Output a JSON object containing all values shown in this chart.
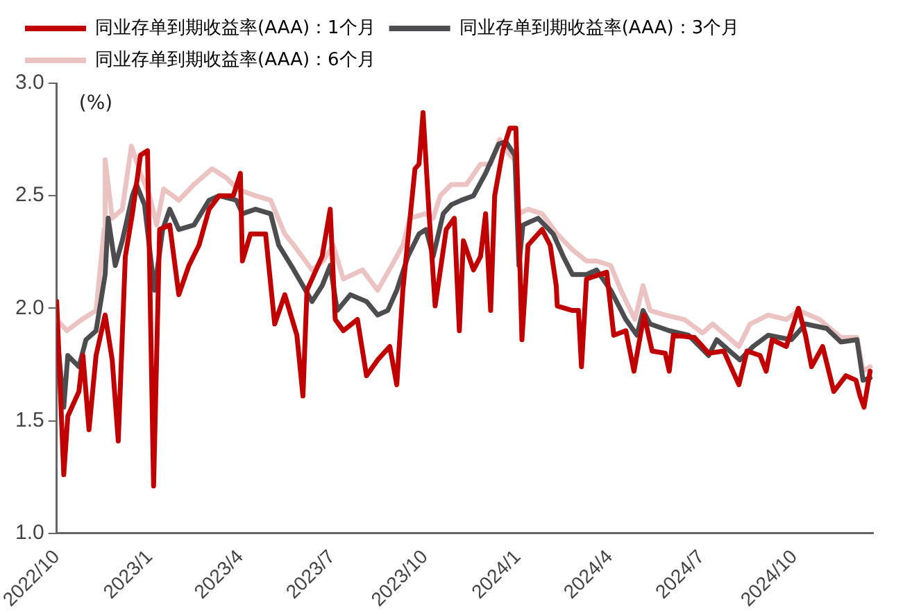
{
  "chart_data": {
    "type": "line",
    "ylabel": "(%)",
    "legend": "top",
    "marker": "none",
    "line_style": "solid",
    "grid": false,
    "xlim": [
      "2022-10-01",
      "2024-12-18"
    ],
    "xticks": [
      {
        "value": "2022-10-01",
        "label": "2022/10"
      },
      {
        "value": "2023-01-01",
        "label": "2023/1"
      },
      {
        "value": "2023-04-01",
        "label": "2023/4"
      },
      {
        "value": "2023-07-01",
        "label": "2023/7"
      },
      {
        "value": "2023-10-01",
        "label": "2023/10"
      },
      {
        "value": "2024-01-01",
        "label": "2024/1"
      },
      {
        "value": "2024-04-01",
        "label": "2024/4"
      },
      {
        "value": "2024-07-01",
        "label": "2024/7"
      },
      {
        "value": "2024-10-01",
        "label": "2024/10"
      }
    ],
    "ylim": [
      1,
      3
    ],
    "yticks": [
      {
        "value": 1,
        "label": "1.0"
      },
      {
        "value": 1.5,
        "label": "1.5"
      },
      {
        "value": 2,
        "label": "2.0"
      },
      {
        "value": 2.5,
        "label": "2.5"
      },
      {
        "value": 3,
        "label": "3.0"
      }
    ],
    "series": [
      {
        "name": "同业存单到期收益率(AAA)：1个月",
        "color": "#c00000",
        "x": [
          "2022-10-01",
          "2022-10-08",
          "2022-10-12",
          "2022-10-23",
          "2022-10-27",
          "2022-11-02",
          "2022-11-09",
          "2022-11-18",
          "2022-11-25",
          "2022-12-01",
          "2022-12-08",
          "2022-12-15",
          "2022-12-23",
          "2022-12-30",
          "2023-01-05",
          "2023-01-11",
          "2023-01-21",
          "2023-01-30",
          "2023-02-09",
          "2023-02-19",
          "2023-03-01",
          "2023-03-11",
          "2023-03-25",
          "2023-04-01",
          "2023-04-03",
          "2023-04-11",
          "2023-04-26",
          "2023-05-05",
          "2023-05-15",
          "2023-05-27",
          "2023-06-02",
          "2023-06-06",
          "2023-06-21",
          "2023-06-29",
          "2023-07-04",
          "2023-07-12",
          "2023-07-26",
          "2023-08-04",
          "2023-08-15",
          "2023-08-27",
          "2023-09-03",
          "2023-09-09",
          "2023-09-21",
          "2023-09-25",
          "2023-09-29",
          "2023-10-05",
          "2023-10-11",
          "2023-10-22",
          "2023-10-30",
          "2023-11-04",
          "2023-11-08",
          "2023-11-18",
          "2023-11-25",
          "2023-11-30",
          "2023-12-05",
          "2023-12-09",
          "2023-12-17",
          "2023-12-24",
          "2023-12-30",
          "2024-01-02",
          "2024-01-05",
          "2024-01-11",
          "2024-01-25",
          "2024-02-02",
          "2024-02-08",
          "2024-02-09",
          "2024-02-24",
          "2024-03-01",
          "2024-03-04",
          "2024-03-09",
          "2024-03-29",
          "2024-04-05",
          "2024-04-17",
          "2024-04-25",
          "2024-05-05",
          "2024-05-13",
          "2024-05-26",
          "2024-05-30",
          "2024-06-03",
          "2024-06-24",
          "2024-07-08",
          "2024-07-23",
          "2024-08-07",
          "2024-08-15",
          "2024-08-28",
          "2024-09-03",
          "2024-09-09",
          "2024-09-23",
          "2024-10-05",
          "2024-10-12",
          "2024-10-18",
          "2024-10-29",
          "2024-11-09",
          "2024-11-21",
          "2024-12-01",
          "2024-12-05",
          "2024-12-09",
          "2024-12-15"
        ],
        "values": [
          2.03,
          1.26,
          1.52,
          1.63,
          1.79,
          1.46,
          1.79,
          1.97,
          1.77,
          1.41,
          2.23,
          2.42,
          2.68,
          2.7,
          1.21,
          2.35,
          2.37,
          2.06,
          2.19,
          2.28,
          2.44,
          2.5,
          2.5,
          2.6,
          2.21,
          2.33,
          2.33,
          1.93,
          2.06,
          1.88,
          1.61,
          2.08,
          2.23,
          2.44,
          1.95,
          1.9,
          1.95,
          1.7,
          1.77,
          1.83,
          1.66,
          2.08,
          2.62,
          2.64,
          2.87,
          2.42,
          2.01,
          2.35,
          2.4,
          1.9,
          2.3,
          2.17,
          2.23,
          2.42,
          1.99,
          2.5,
          2.7,
          2.8,
          2.8,
          2.35,
          1.86,
          2.28,
          2.35,
          2.28,
          2.1,
          2.01,
          1.99,
          1.99,
          1.74,
          2.13,
          2.16,
          1.88,
          1.9,
          1.72,
          1.97,
          1.81,
          1.8,
          1.72,
          1.88,
          1.87,
          1.8,
          1.81,
          1.66,
          1.81,
          1.79,
          1.72,
          1.86,
          1.83,
          2.0,
          1.88,
          1.74,
          1.83,
          1.63,
          1.7,
          1.68,
          1.61,
          1.56,
          1.72
        ]
      },
      {
        "name": "同业存单到期收益率(AAA)：3个月",
        "color": "#4d4d4f",
        "x": [
          "2022-10-01",
          "2022-10-08",
          "2022-10-12",
          "2022-10-23",
          "2022-10-30",
          "2022-11-09",
          "2022-11-18",
          "2022-11-21",
          "2022-11-28",
          "2022-12-05",
          "2022-12-15",
          "2022-12-19",
          "2022-12-27",
          "2023-01-03",
          "2023-01-06",
          "2023-01-14",
          "2023-01-21",
          "2023-01-30",
          "2023-02-14",
          "2023-03-01",
          "2023-03-11",
          "2023-03-28",
          "2023-04-03",
          "2023-04-16",
          "2023-05-01",
          "2023-05-09",
          "2023-05-24",
          "2023-06-11",
          "2023-06-21",
          "2023-06-29",
          "2023-07-06",
          "2023-07-19",
          "2023-08-04",
          "2023-08-15",
          "2023-08-25",
          "2023-09-03",
          "2023-09-14",
          "2023-09-25",
          "2023-10-02",
          "2023-10-09",
          "2023-10-19",
          "2023-10-27",
          "2023-11-06",
          "2023-11-18",
          "2023-11-30",
          "2023-12-13",
          "2023-12-20",
          "2023-12-29",
          "2024-01-02",
          "2024-01-06",
          "2024-01-21",
          "2024-02-05",
          "2024-02-15",
          "2024-02-24",
          "2024-03-09",
          "2024-03-19",
          "2024-04-02",
          "2024-04-17",
          "2024-04-28",
          "2024-05-04",
          "2024-05-11",
          "2024-05-30",
          "2024-06-18",
          "2024-07-08",
          "2024-07-16",
          "2024-08-08",
          "2024-08-21",
          "2024-09-05",
          "2024-09-28",
          "2024-10-12",
          "2024-11-02",
          "2024-11-16",
          "2024-12-02",
          "2024-12-08",
          "2024-12-15"
        ],
        "values": [
          1.9,
          1.56,
          1.79,
          1.74,
          1.86,
          1.9,
          2.15,
          2.4,
          2.19,
          2.3,
          2.5,
          2.55,
          2.46,
          2.19,
          2.08,
          2.35,
          2.44,
          2.35,
          2.37,
          2.48,
          2.5,
          2.48,
          2.42,
          2.44,
          2.42,
          2.28,
          2.17,
          2.03,
          2.1,
          2.19,
          1.99,
          2.06,
          2.03,
          1.97,
          1.99,
          2.08,
          2.23,
          2.33,
          2.35,
          2.23,
          2.42,
          2.46,
          2.48,
          2.5,
          2.6,
          2.73,
          2.74,
          2.68,
          2.19,
          2.37,
          2.4,
          2.33,
          2.23,
          2.15,
          2.15,
          2.17,
          2.08,
          1.95,
          1.88,
          1.99,
          1.93,
          1.9,
          1.88,
          1.79,
          1.86,
          1.77,
          1.83,
          1.88,
          1.86,
          1.93,
          1.91,
          1.85,
          1.86,
          1.68,
          1.69
        ]
      },
      {
        "name": "同业存单到期收益率(AAA)：6个月",
        "color": "#ecc3c3",
        "x": [
          "2022-10-01",
          "2022-10-11",
          "2022-10-26",
          "2022-11-09",
          "2022-11-17",
          "2022-11-18",
          "2022-11-25",
          "2022-12-05",
          "2022-12-14",
          "2022-12-23",
          "2023-01-01",
          "2023-01-08",
          "2023-01-15",
          "2023-01-30",
          "2023-02-14",
          "2023-03-04",
          "2023-03-18",
          "2023-03-29",
          "2023-04-16",
          "2023-05-01",
          "2023-05-15",
          "2023-05-24",
          "2023-06-11",
          "2023-06-22",
          "2023-07-02",
          "2023-07-12",
          "2023-07-31",
          "2023-08-15",
          "2023-08-29",
          "2023-09-09",
          "2023-09-16",
          "2023-10-01",
          "2023-10-09",
          "2023-10-16",
          "2023-10-27",
          "2023-11-11",
          "2023-11-25",
          "2023-12-05",
          "2023-12-14",
          "2023-12-24",
          "2023-12-29",
          "2024-01-02",
          "2024-01-11",
          "2024-01-25",
          "2024-02-09",
          "2024-02-24",
          "2024-03-09",
          "2024-03-19",
          "2024-04-02",
          "2024-04-12",
          "2024-04-26",
          "2024-05-04",
          "2024-05-11",
          "2024-05-26",
          "2024-06-14",
          "2024-07-02",
          "2024-07-12",
          "2024-08-07",
          "2024-08-18",
          "2024-09-05",
          "2024-09-23",
          "2024-10-05",
          "2024-10-26",
          "2024-11-16",
          "2024-12-02",
          "2024-12-08",
          "2024-12-15"
        ],
        "values": [
          1.95,
          1.9,
          1.95,
          1.99,
          2.35,
          2.66,
          2.4,
          2.44,
          2.72,
          2.6,
          2.5,
          2.37,
          2.53,
          2.48,
          2.55,
          2.62,
          2.58,
          2.53,
          2.5,
          2.48,
          2.33,
          2.28,
          2.17,
          2.21,
          2.28,
          2.13,
          2.17,
          2.08,
          2.19,
          2.28,
          2.4,
          2.42,
          2.4,
          2.5,
          2.55,
          2.55,
          2.64,
          2.64,
          2.75,
          2.68,
          2.66,
          2.42,
          2.44,
          2.42,
          2.33,
          2.26,
          2.21,
          2.21,
          2.19,
          2.08,
          1.95,
          2.1,
          1.99,
          1.97,
          1.95,
          1.89,
          1.93,
          1.83,
          1.93,
          1.97,
          1.95,
          1.99,
          1.95,
          1.87,
          1.87,
          1.72,
          1.74
        ]
      }
    ]
  }
}
